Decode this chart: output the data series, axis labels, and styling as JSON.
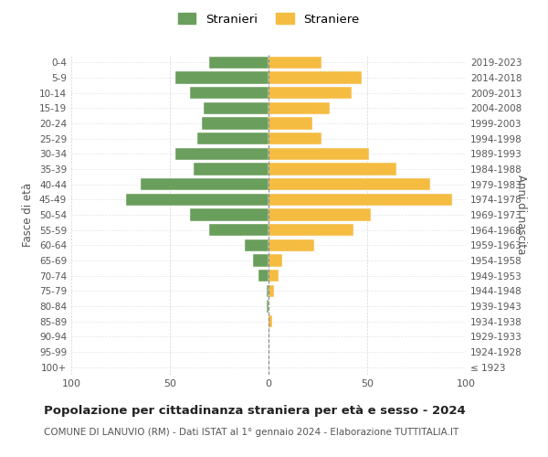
{
  "age_groups": [
    "100+",
    "95-99",
    "90-94",
    "85-89",
    "80-84",
    "75-79",
    "70-74",
    "65-69",
    "60-64",
    "55-59",
    "50-54",
    "45-49",
    "40-44",
    "35-39",
    "30-34",
    "25-29",
    "20-24",
    "15-19",
    "10-14",
    "5-9",
    "0-4"
  ],
  "birth_years": [
    "≤ 1923",
    "1924-1928",
    "1929-1933",
    "1934-1938",
    "1939-1943",
    "1944-1948",
    "1949-1953",
    "1954-1958",
    "1959-1963",
    "1964-1968",
    "1969-1973",
    "1974-1978",
    "1979-1983",
    "1984-1988",
    "1989-1993",
    "1994-1998",
    "1999-2003",
    "2004-2008",
    "2009-2013",
    "2014-2018",
    "2019-2023"
  ],
  "males": [
    0,
    0,
    0,
    0,
    1,
    1,
    5,
    8,
    12,
    30,
    40,
    72,
    65,
    38,
    47,
    36,
    34,
    33,
    40,
    47,
    30
  ],
  "females": [
    0,
    0,
    0,
    2,
    0,
    3,
    5,
    7,
    23,
    43,
    52,
    93,
    82,
    65,
    51,
    27,
    22,
    31,
    42,
    47,
    27
  ],
  "male_color": "#6a9e5c",
  "female_color": "#f5bc42",
  "background_color": "#ffffff",
  "grid_color": "#cccccc",
  "bar_height": 0.8,
  "xlim": 100,
  "title": "Popolazione per cittadinanza straniera per età e sesso - 2024",
  "subtitle": "COMUNE DI LANUVIO (RM) - Dati ISTAT al 1° gennaio 2024 - Elaborazione TUTTITALIA.IT",
  "ylabel_left": "Fasce di età",
  "ylabel_right": "Anni di nascita",
  "legend_stranieri": "Stranieri",
  "legend_straniere": "Straniere"
}
